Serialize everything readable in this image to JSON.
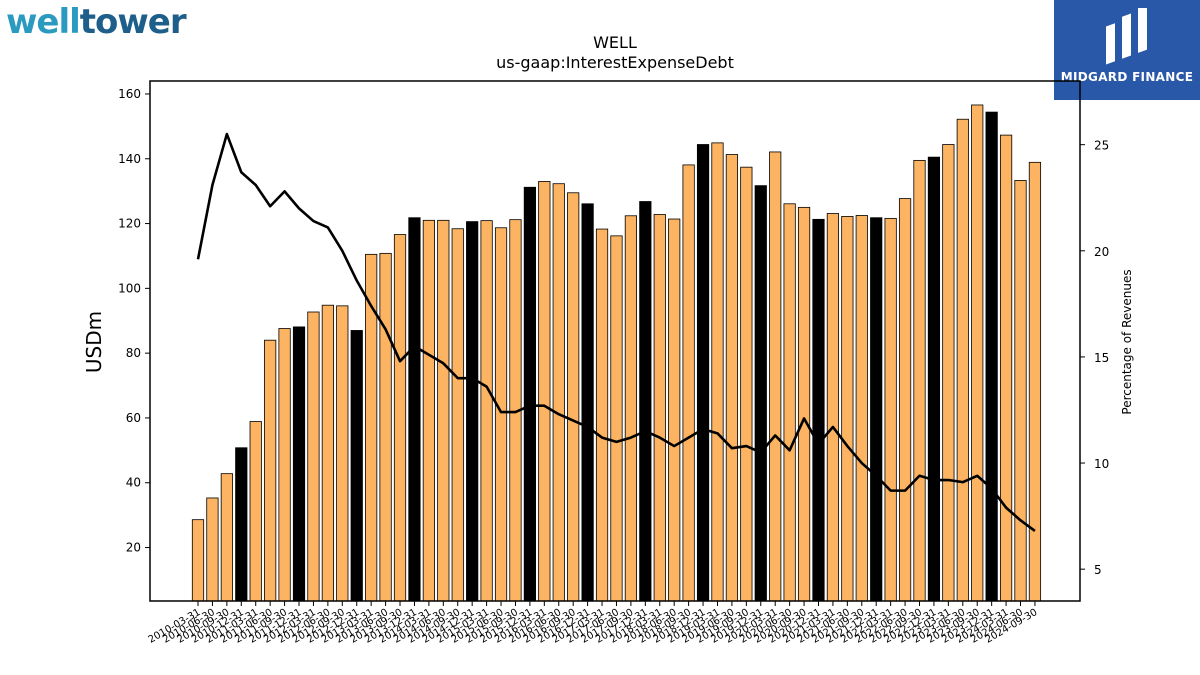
{
  "branding": {
    "left_logo_part1": "well",
    "left_logo_part2": "tower",
    "right_logo_label": "MIDGARD FINANCE"
  },
  "colors": {
    "bar_normal": "#FDB462",
    "bar_highlight": "#000000",
    "line": "#000000"
  },
  "chart_data": {
    "type": "bar",
    "title": "WELL",
    "subtitle": "us-gaap:InterestExpenseDebt",
    "ylabel": "USDm",
    "y2label": "Percentage of Revenues",
    "ylim": [
      3.5,
      164
    ],
    "y2lim": [
      3.5,
      28
    ],
    "yticks": [
      20,
      40,
      60,
      80,
      100,
      120,
      140,
      160
    ],
    "y2ticks": [
      5,
      10,
      15,
      20,
      25
    ],
    "grid": false,
    "categories": [
      "2010-03-31",
      "2010-06-30",
      "2010-09-30",
      "2010-12-31",
      "2011-03-31",
      "2011-06-30",
      "2011-09-30",
      "2011-12-31",
      "2012-03-31",
      "2012-06-30",
      "2012-09-30",
      "2012-12-31",
      "2013-03-31",
      "2013-06-30",
      "2013-09-30",
      "2013-12-31",
      "2014-03-31",
      "2014-06-30",
      "2014-09-30",
      "2014-12-31",
      "2015-03-31",
      "2015-06-30",
      "2015-09-30",
      "2015-12-31",
      "2016-03-31",
      "2016-06-30",
      "2016-09-30",
      "2016-12-31",
      "2017-03-31",
      "2017-06-30",
      "2017-09-30",
      "2017-12-31",
      "2018-03-31",
      "2018-06-30",
      "2018-09-30",
      "2018-12-31",
      "2019-03-31",
      "2019-06-30",
      "2019-09-30",
      "2019-12-31",
      "2020-03-31",
      "2020-06-30",
      "2020-09-30",
      "2020-12-31",
      "2021-03-31",
      "2021-06-30",
      "2021-09-30",
      "2021-12-31",
      "2022-03-31",
      "2022-06-30",
      "2022-09-30",
      "2022-12-31",
      "2023-03-31",
      "2023-06-30",
      "2023-09-30",
      "2023-12-31",
      "2024-03-31",
      "2024-06-30",
      "2024-09-30"
    ],
    "series": [
      {
        "values": [
          28.6,
          35.3,
          42.8,
          50.8,
          58.9,
          84.0,
          87.6,
          88.1,
          92.7,
          94.8,
          94.6,
          87.0,
          110.5,
          110.8,
          116.6,
          121.8,
          121.0,
          121.0,
          118.4,
          120.6,
          120.9,
          118.7,
          121.2,
          131.2,
          133.0,
          132.3,
          129.5,
          126.1,
          118.3,
          116.2,
          122.4,
          126.8,
          122.8,
          121.4,
          138.1,
          144.4,
          144.9,
          141.3,
          137.4,
          131.7,
          142.1,
          126.1,
          125.0,
          121.3,
          123.1,
          122.2,
          122.5,
          121.8,
          121.6,
          127.7,
          139.5,
          140.5,
          144.4,
          152.2,
          156.6,
          154.4,
          147.3,
          133.3,
          138.9
        ],
        "highlight": [
          false,
          false,
          false,
          true,
          false,
          false,
          false,
          true,
          false,
          false,
          false,
          true,
          false,
          false,
          false,
          true,
          false,
          false,
          false,
          true,
          false,
          false,
          false,
          true,
          false,
          false,
          false,
          true,
          false,
          false,
          false,
          true,
          false,
          false,
          false,
          true,
          false,
          false,
          false,
          true,
          false,
          false,
          false,
          true,
          false,
          false,
          false,
          true,
          false,
          false,
          false,
          true,
          false,
          false,
          false,
          true,
          false,
          false,
          false
        ]
      },
      {
        "type": "line",
        "axis": "right",
        "values": [
          19.6,
          23.1,
          25.5,
          23.7,
          23.1,
          22.1,
          22.8,
          22.0,
          21.4,
          21.1,
          20.0,
          18.6,
          17.4,
          16.3,
          14.8,
          15.5,
          15.1,
          14.7,
          14.0,
          14.0,
          13.6,
          12.4,
          12.4,
          12.7,
          12.7,
          12.3,
          12.0,
          11.7,
          11.2,
          11.0,
          11.2,
          11.5,
          11.2,
          10.8,
          11.2,
          11.6,
          11.4,
          10.7,
          10.8,
          10.5,
          11.3,
          10.6,
          12.1,
          10.9,
          11.7,
          10.8,
          10.0,
          9.4,
          8.7,
          8.7,
          9.4,
          9.2,
          9.2,
          9.1,
          9.4,
          8.8,
          7.9,
          7.3,
          6.8
        ]
      }
    ]
  }
}
